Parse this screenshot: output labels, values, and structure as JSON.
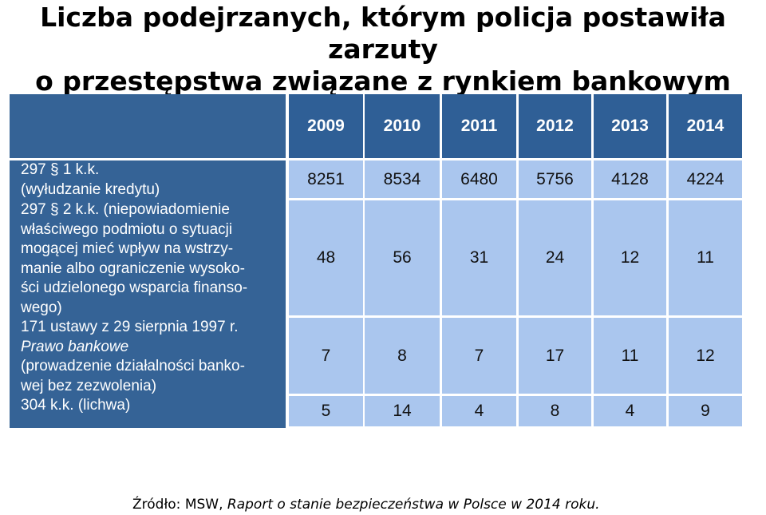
{
  "title": {
    "line1": "Liczba podejrzanych, którym policja postawiła zarzuty",
    "line2": "o przestępstwa związane z rynkiem bankowym"
  },
  "colors": {
    "header_bg": "#2f5f96",
    "cell_bg": "#aac6ee",
    "stub_bg": "#356396"
  },
  "chart_data": {
    "type": "table",
    "columns": [
      "2009",
      "2010",
      "2011",
      "2012",
      "2013",
      "2014"
    ],
    "rows": [
      {
        "label_lines": [
          {
            "t": "297 § 1 k.k.",
            "i": false
          },
          {
            "t": "(wyłudzanie kredytu)",
            "i": false
          }
        ],
        "values": [
          8251,
          8534,
          6480,
          5756,
          4128,
          4224
        ]
      },
      {
        "label_lines": [
          {
            "t": "297 § 2 k.k. (niepowiadomienie",
            "i": false
          },
          {
            "t": "właściwego podmiotu o sytuacji",
            "i": false
          },
          {
            "t": "mogącej mieć wpływ na wstrzy-",
            "i": false
          },
          {
            "t": "manie albo ograniczenie wysoko-",
            "i": false
          },
          {
            "t": "ści udzielonego wsparcia finanso-",
            "i": false
          },
          {
            "t": "wego)",
            "i": false
          }
        ],
        "values": [
          48,
          56,
          31,
          24,
          12,
          11
        ]
      },
      {
        "label_lines": [
          {
            "t": "171 ustawy z 29 sierpnia 1997 r.",
            "i": false
          },
          {
            "t": "Prawo bankowe",
            "i": true
          },
          {
            "t": "(prowadzenie działalności banko-",
            "i": false
          },
          {
            "t": "wej bez zezwolenia)",
            "i": false
          }
        ],
        "values": [
          7,
          8,
          7,
          17,
          11,
          12
        ]
      },
      {
        "label_lines": [
          {
            "t": "304 k.k. (lichwa)",
            "i": false
          }
        ],
        "values": [
          5,
          14,
          4,
          8,
          4,
          9
        ]
      }
    ]
  },
  "source": {
    "prefix": "Źródło: MSW, ",
    "italic": "Raport o stanie bezpieczeństwa w Polsce w 2014 roku."
  }
}
